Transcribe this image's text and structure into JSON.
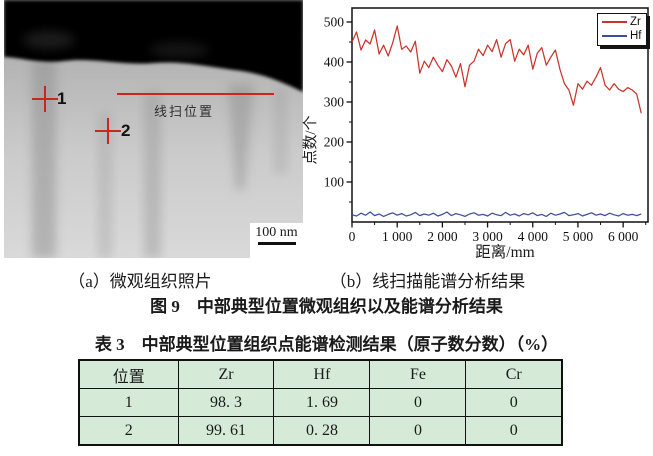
{
  "panel_a": {
    "label": "（a）微观组织照片",
    "marker_1": "1",
    "marker_2": "2",
    "line_scan_label": "线扫位置",
    "scale_bar": "100 nm"
  },
  "panel_b": {
    "label": "（b）线扫描能谱分析结果"
  },
  "figure_caption": "图 9　中部典型位置微观组织以及能谱分析结果",
  "chart_data": {
    "type": "line",
    "xlabel": "距离/mm",
    "ylabel": "点数/个",
    "xlim": [
      0,
      6550
    ],
    "ylim": [
      0,
      535
    ],
    "x_ticks": [
      0,
      1000,
      2000,
      3000,
      4000,
      5000,
      6000
    ],
    "x_tick_labels": [
      "0",
      "1 000",
      "2 000",
      "3 000",
      "4 000",
      "5 000",
      "6 000"
    ],
    "x_minor_step": 500,
    "y_ticks": [
      100,
      200,
      300,
      400,
      500
    ],
    "y_minor_step": 50,
    "legend_position": "top-right",
    "x_step": 100,
    "series": [
      {
        "name": "Zr",
        "color": "#c8352c",
        "values": [
          450,
          475,
          430,
          455,
          445,
          480,
          420,
          442,
          415,
          448,
          490,
          432,
          440,
          425,
          452,
          372,
          402,
          386,
          412,
          392,
          376,
          406,
          390,
          362,
          396,
          338,
          392,
          402,
          432,
          416,
          442,
          426,
          456,
          412,
          446,
          456,
          402,
          432,
          418,
          442,
          382,
          422,
          436,
          392,
          412,
          430,
          382,
          346,
          330,
          292,
          346,
          332,
          352,
          342,
          362,
          386,
          342,
          330,
          346,
          332,
          326,
          336,
          330,
          320,
          272
        ]
      },
      {
        "name": "Hf",
        "color": "#3c4f9e",
        "values": [
          18,
          15,
          22,
          17,
          25,
          16,
          20,
          14,
          19,
          23,
          17,
          21,
          15,
          18,
          24,
          16,
          20,
          17,
          22,
          15,
          19,
          25,
          16,
          21,
          18,
          14,
          20,
          23,
          17,
          19,
          15,
          22,
          18,
          16,
          24,
          17,
          20,
          15,
          21,
          18,
          23,
          16,
          19,
          14,
          22,
          17,
          20,
          24,
          16,
          18,
          21,
          15,
          19,
          23,
          17,
          20,
          16,
          22,
          18,
          15,
          21,
          17,
          19,
          16,
          20
        ]
      }
    ]
  },
  "table": {
    "caption": "表 3　中部典型位置组织点能谱检测结果（原子数分数）（%）",
    "headers": [
      "位置",
      "Zr",
      "Hf",
      "Fe",
      "Cr"
    ],
    "rows": [
      [
        "1",
        "98. 3",
        "1. 69",
        "0",
        "0"
      ],
      [
        "2",
        "99. 61",
        "0. 28",
        "0",
        "0"
      ]
    ],
    "cell_bg": "#d6ead8"
  }
}
